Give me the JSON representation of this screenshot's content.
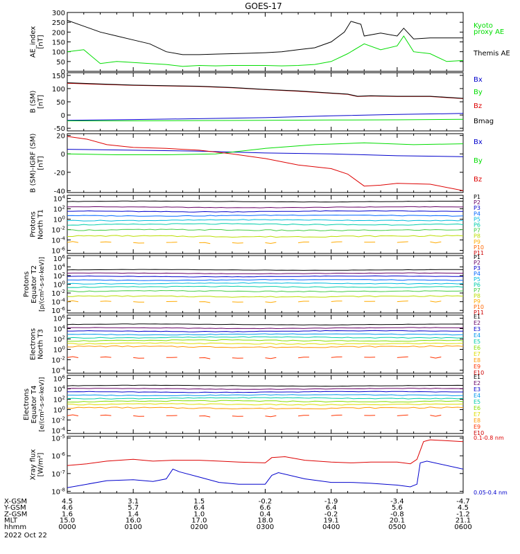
{
  "title": "GOES-17",
  "time_axis": {
    "ticks": [
      "0000",
      "0100",
      "0200",
      "0300",
      "0400",
      "0500",
      "0600"
    ],
    "range_hours": [
      0,
      6
    ]
  },
  "footer": {
    "rows": [
      {
        "label": "X-GSM",
        "values": [
          "4.5",
          "3.1",
          "1.5",
          "-0.2",
          "-1.9",
          "-3.4",
          "-4.7"
        ]
      },
      {
        "label": "Y-GSM",
        "values": [
          "4.6",
          "5.7",
          "6.4",
          "6.6",
          "6.4",
          "5.6",
          "4.5"
        ]
      },
      {
        "label": "Z-GSM",
        "values": [
          "1.6",
          "1.4",
          "1.0",
          "0.4",
          "-0.2",
          "-0.8",
          "-1.2"
        ]
      },
      {
        "label": "MLT",
        "values": [
          "15.0",
          "16.0",
          "17.0",
          "18.0",
          "19.1",
          "20.1",
          "21.1"
        ]
      },
      {
        "label": "hhmm",
        "values": [
          "0000",
          "0100",
          "0200",
          "0300",
          "0400",
          "0500",
          "0600"
        ]
      }
    ],
    "date": "2022 Oct 22"
  },
  "colors": {
    "black": "#000000",
    "green": "#00dd00",
    "red": "#dd0000",
    "blue": "#0000cc"
  },
  "chart_data": [
    {
      "id": "ae",
      "type": "line",
      "ylabel": [
        "AE_index",
        "[nT]"
      ],
      "ylim": [
        0,
        300
      ],
      "yticks": [
        "0",
        "50",
        "100",
        "150",
        "200",
        "250",
        "300"
      ],
      "legend": [
        {
          "text": "Kyoto",
          "color": "#00dd00"
        },
        {
          "text": "proxy AE",
          "color": "#00dd00"
        },
        {
          "text": "Themis AE",
          "color": "#000000"
        }
      ],
      "series": [
        {
          "color": "#000000",
          "x": [
            0,
            0.25,
            0.5,
            0.75,
            1,
            1.25,
            1.5,
            1.75,
            2,
            2.25,
            2.5,
            2.75,
            3,
            3.25,
            3.5,
            3.75,
            4,
            4.2,
            4.3,
            4.45,
            4.5,
            4.75,
            5,
            5.1,
            5.25,
            5.5,
            5.75,
            6
          ],
          "y": [
            260,
            230,
            200,
            180,
            160,
            140,
            100,
            85,
            85,
            88,
            90,
            92,
            95,
            100,
            110,
            120,
            150,
            200,
            255,
            240,
            180,
            195,
            180,
            220,
            165,
            170,
            170,
            170
          ]
        },
        {
          "color": "#00dd00",
          "x": [
            0,
            0.25,
            0.5,
            0.75,
            1,
            1.25,
            1.5,
            1.75,
            2,
            2.25,
            2.5,
            2.75,
            3,
            3.25,
            3.5,
            3.75,
            4,
            4.25,
            4.5,
            4.75,
            5,
            5.1,
            5.25,
            5.5,
            5.75,
            6
          ],
          "y": [
            100,
            110,
            40,
            50,
            45,
            40,
            35,
            25,
            30,
            28,
            30,
            30,
            30,
            28,
            30,
            35,
            50,
            90,
            140,
            110,
            130,
            180,
            100,
            90,
            50,
            55
          ]
        }
      ]
    },
    {
      "id": "b_sm",
      "type": "line",
      "ylabel": [
        "B (SM)",
        "[nT]"
      ],
      "ylim": [
        -60,
        160
      ],
      "yticks": [
        "-50",
        "0",
        "50",
        "100",
        "150"
      ],
      "legend": [
        {
          "text": "Bx",
          "color": "#0000cc"
        },
        {
          "text": "By",
          "color": "#00dd00"
        },
        {
          "text": "Bz",
          "color": "#dd0000"
        },
        {
          "text": "Bmag",
          "color": "#000000"
        }
      ],
      "series": [
        {
          "color": "#0000cc",
          "x": [
            0,
            1,
            2,
            3,
            4,
            5,
            6
          ],
          "y": [
            -20,
            -17,
            -14,
            -10,
            -3,
            2,
            6
          ]
        },
        {
          "color": "#00dd00",
          "x": [
            0,
            1,
            2,
            3,
            4,
            5,
            6
          ],
          "y": [
            -22,
            -22,
            -21,
            -20,
            -19,
            -18,
            -16
          ]
        },
        {
          "color": "#dd0000",
          "x": [
            0,
            1,
            2,
            2.5,
            3,
            3.5,
            4,
            4.25,
            4.4,
            4.6,
            5,
            5.5,
            6
          ],
          "y": [
            120,
            112,
            108,
            103,
            96,
            90,
            82,
            78,
            70,
            72,
            70,
            70,
            62
          ]
        },
        {
          "color": "#000000",
          "x": [
            0,
            1,
            2,
            2.5,
            3,
            3.5,
            4,
            4.25,
            4.4,
            4.6,
            5,
            5.5,
            6
          ],
          "y": [
            122,
            113,
            109,
            104,
            97,
            91,
            83,
            79,
            71,
            73,
            71,
            71,
            63
          ]
        }
      ]
    },
    {
      "id": "b_igrf",
      "type": "line",
      "ylabel": [
        "B (SM)-IGRF (SM)",
        "[nT]"
      ],
      "ylim": [
        -42,
        22
      ],
      "yticks": [
        "-40",
        "-20",
        "0",
        "20"
      ],
      "legend": [
        {
          "text": "Bx",
          "color": "#0000cc"
        },
        {
          "text": "By",
          "color": "#00dd00"
        },
        {
          "text": "Bz",
          "color": "#dd0000"
        }
      ],
      "series": [
        {
          "color": "#0000cc",
          "x": [
            0,
            1,
            2,
            3,
            4,
            5,
            6
          ],
          "y": [
            5,
            4,
            3,
            1,
            0,
            -2,
            -3
          ]
        },
        {
          "color": "#00dd00",
          "x": [
            0,
            0.75,
            1.5,
            2.25,
            3,
            3.75,
            4.5,
            5.25,
            6
          ],
          "y": [
            0,
            -1,
            -1,
            0,
            6,
            10,
            12,
            10,
            11
          ]
        },
        {
          "color": "#dd0000",
          "x": [
            0,
            0.3,
            0.6,
            1,
            1.5,
            2,
            2.5,
            3,
            3.5,
            4,
            4.25,
            4.5,
            4.75,
            5,
            5.5,
            6
          ],
          "y": [
            19,
            16,
            10,
            7,
            6,
            4,
            0,
            -5,
            -12,
            -16,
            -22,
            -35,
            -34,
            -32,
            -33,
            -40
          ]
        }
      ]
    },
    {
      "id": "p_north",
      "type": "line",
      "log": true,
      "ylabel": [
        "Protons",
        "North T1"
      ],
      "ylim_exp": [
        -6.6,
        4.6
      ],
      "yticks": [
        "10^4",
        "10^2",
        "10^0",
        "10^-2",
        "10^-4",
        "10^-6"
      ],
      "legend": [
        {
          "text": "P1",
          "color": "#000000"
        },
        {
          "text": "P2",
          "color": "#660066"
        },
        {
          "text": "P3",
          "color": "#0000cc"
        },
        {
          "text": "P4",
          "color": "#0066ff"
        },
        {
          "text": "P5",
          "color": "#00bbdd"
        },
        {
          "text": "P6",
          "color": "#00ccaa"
        },
        {
          "text": "P7",
          "color": "#44cc44"
        },
        {
          "text": "P8",
          "color": "#bbdd00"
        },
        {
          "text": "P9",
          "color": "#ffaa00"
        },
        {
          "text": "P10",
          "color": "#ff6600"
        },
        {
          "text": "P11",
          "color": "#cc0000"
        }
      ],
      "levels_exp": [
        3.4,
        2.3,
        1.5,
        0.7,
        -0.2,
        -1.0,
        -2.1,
        -3.3,
        -4.5
      ]
    },
    {
      "id": "p_eq",
      "type": "line",
      "log": true,
      "ylabel": [
        "Protons",
        "Equator T2",
        "[p/(cm²-s-sr-keV)]"
      ],
      "ylim_exp": [
        -6.6,
        6.6
      ],
      "yticks": [
        "10^6",
        "10^4",
        "10^2",
        "10^0",
        "10^-2",
        "10^-4",
        "10^-6"
      ],
      "legend": [
        {
          "text": "P1",
          "color": "#000000"
        },
        {
          "text": "P2",
          "color": "#660066"
        },
        {
          "text": "P3",
          "color": "#0000cc"
        },
        {
          "text": "P4",
          "color": "#0066ff"
        },
        {
          "text": "P5",
          "color": "#00bbdd"
        },
        {
          "text": "P6",
          "color": "#00ccaa"
        },
        {
          "text": "P7",
          "color": "#44cc44"
        },
        {
          "text": "P8",
          "color": "#bbdd00"
        },
        {
          "text": "P9",
          "color": "#ffaa00"
        },
        {
          "text": "P10",
          "color": "#ff6600"
        },
        {
          "text": "P11",
          "color": "#cc0000"
        }
      ],
      "levels_exp": [
        3.3,
        2.5,
        1.8,
        1.0,
        0.2,
        -0.6,
        -1.6,
        -2.8,
        -4.0
      ]
    },
    {
      "id": "e_north",
      "type": "line",
      "log": true,
      "ylabel": [
        "Electrons",
        "North T3"
      ],
      "ylim_exp": [
        -4.6,
        6.6
      ],
      "yticks": [
        "10^6",
        "10^4",
        "10^2",
        "10^0",
        "10^-2",
        "10^-4"
      ],
      "legend": [
        {
          "text": "E1",
          "color": "#000000"
        },
        {
          "text": "E2",
          "color": "#660066"
        },
        {
          "text": "E3",
          "color": "#0000cc"
        },
        {
          "text": "E4",
          "color": "#0099ee"
        },
        {
          "text": "E5",
          "color": "#00ccaa"
        },
        {
          "text": "E6",
          "color": "#88dd00"
        },
        {
          "text": "E7",
          "color": "#dddd00"
        },
        {
          "text": "E8",
          "color": "#ff9900"
        },
        {
          "text": "E9",
          "color": "#ff3300"
        },
        {
          "text": "E10",
          "color": "#cc0000"
        }
      ],
      "levels_exp": [
        4.8,
        4.1,
        3.5,
        2.9,
        2.3,
        1.7,
        1.1,
        0.5,
        -1.6
      ]
    },
    {
      "id": "e_eq",
      "type": "line",
      "log": true,
      "ylabel": [
        "Electrons",
        "Equator T4",
        "[e/(cm²-s-sr-keV)]"
      ],
      "ylim_exp": [
        -4.6,
        6.6
      ],
      "yticks": [
        "10^6",
        "10^4",
        "10^2",
        "10^0",
        "10^-2",
        "10^-4"
      ],
      "legend": [
        {
          "text": "E1",
          "color": "#000000"
        },
        {
          "text": "E2",
          "color": "#660066"
        },
        {
          "text": "E3",
          "color": "#0000cc"
        },
        {
          "text": "E4",
          "color": "#0099ee"
        },
        {
          "text": "E5",
          "color": "#00ccaa"
        },
        {
          "text": "E6",
          "color": "#88dd00"
        },
        {
          "text": "E7",
          "color": "#dddd00"
        },
        {
          "text": "E8",
          "color": "#ff9900"
        },
        {
          "text": "E9",
          "color": "#ff3300"
        },
        {
          "text": "E10",
          "color": "#cc0000"
        }
      ],
      "levels_exp": [
        4.6,
        4.0,
        3.4,
        2.8,
        2.2,
        1.6,
        1.0,
        0.3,
        -1.2
      ]
    },
    {
      "id": "xray",
      "type": "line",
      "log": true,
      "ylabel": [
        "Xray flux",
        "[W/m²]"
      ],
      "ylim_exp": [
        -8.1,
        -4.9
      ],
      "yticks": [
        "10^-5",
        "10^-6",
        "10^-7",
        "10^-8"
      ],
      "legend": [
        {
          "text": "0.1-0.8 nm",
          "color": "#dd0000"
        },
        {
          "text": "0.05-0.4 nm",
          "color": "#0000cc"
        }
      ],
      "series": [
        {
          "color": "#dd0000",
          "x": [
            0,
            0.3,
            0.6,
            1,
            1.3,
            1.6,
            2,
            2.3,
            2.6,
            3,
            3.1,
            3.3,
            3.6,
            4,
            4.3,
            4.6,
            5,
            5.2,
            5.3,
            5.4,
            5.5,
            6
          ],
          "y": [
            -6.55,
            -6.45,
            -6.3,
            -6.2,
            -6.3,
            -6.25,
            -6.25,
            -6.3,
            -6.35,
            -6.4,
            -6.1,
            -6.05,
            -6.25,
            -6.35,
            -6.4,
            -6.35,
            -6.35,
            -6.45,
            -6.2,
            -5.2,
            -5.1,
            -5.2
          ]
        },
        {
          "color": "#0000cc",
          "x": [
            0,
            0.3,
            0.6,
            1,
            1.3,
            1.5,
            1.6,
            1.7,
            2,
            2.3,
            2.6,
            3,
            3.1,
            3.2,
            3.6,
            4,
            4.3,
            4.6,
            5,
            5.2,
            5.3,
            5.35,
            5.45,
            6
          ],
          "y": [
            -7.8,
            -7.6,
            -7.4,
            -7.35,
            -7.45,
            -7.3,
            -6.75,
            -6.9,
            -7.2,
            -7.5,
            -7.6,
            -7.6,
            -7.1,
            -6.95,
            -7.3,
            -7.5,
            -7.5,
            -7.55,
            -7.65,
            -7.75,
            -7.6,
            -6.4,
            -6.3,
            -6.75
          ]
        }
      ]
    }
  ]
}
